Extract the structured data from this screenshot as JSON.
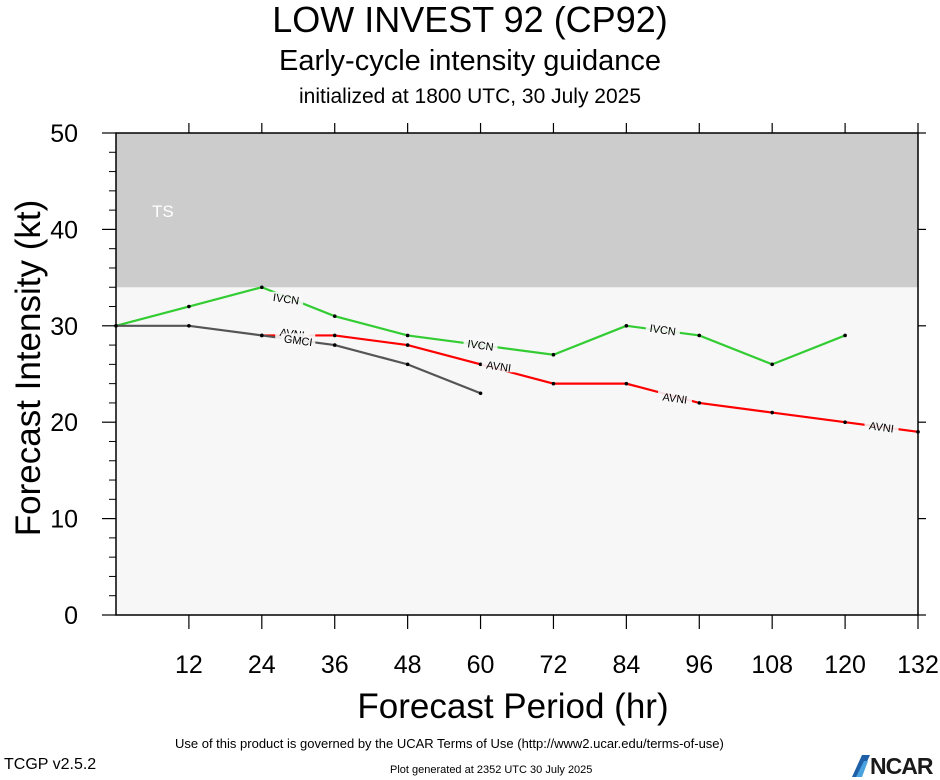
{
  "header": {
    "title": "LOW INVEST 92 (CP92)",
    "subtitle": "Early-cycle intensity guidance",
    "init_line": "initialized at 1800 UTC, 30 July 2025"
  },
  "footer": {
    "terms": "Use of this product is governed by the UCAR Terms of Use (http://www2.ucar.edu/terms-of-use)",
    "version": "TCGP v2.5.2",
    "generated": "Plot generated at 2352 UTC   30 July 2025",
    "logo_text": "NCAR"
  },
  "chart_data": {
    "type": "line",
    "xlabel": "Forecast Period (hr)",
    "ylabel": "Forecast Intensity (kt)",
    "xlim": [
      0,
      132
    ],
    "ylim": [
      0,
      50
    ],
    "xticks": [
      12,
      24,
      36,
      48,
      60,
      72,
      84,
      96,
      108,
      120,
      132
    ],
    "yticks": [
      0,
      10,
      20,
      30,
      40,
      50
    ],
    "grid": false,
    "bands": [
      {
        "label": "TS",
        "from": 34,
        "to": 50,
        "color": "#cccccc"
      }
    ],
    "plot_background": "#f7f7f7",
    "series": [
      {
        "name": "IVCN",
        "color": "#33cc33",
        "x": [
          0,
          12,
          24,
          36,
          48,
          60,
          72,
          84,
          96,
          108,
          120
        ],
        "y": [
          30,
          32,
          34,
          31,
          29,
          28,
          27,
          30,
          29,
          26,
          29
        ]
      },
      {
        "name": "AVNI",
        "color": "#ff0000",
        "x": [
          24,
          36,
          48,
          60,
          72,
          84,
          96,
          108,
          120,
          132
        ],
        "y": [
          29,
          29,
          28,
          26,
          24,
          24,
          22,
          21,
          20,
          19
        ]
      },
      {
        "name": "GMCI",
        "color": "#555555",
        "x": [
          0,
          12,
          24,
          36,
          48,
          60
        ],
        "y": [
          30,
          30,
          29,
          28,
          26,
          23
        ]
      }
    ],
    "annotations": [
      {
        "text": "IVCN",
        "x": 28,
        "y": 32.8,
        "series": 0
      },
      {
        "text": "IVCN",
        "x": 60,
        "y": 28.0,
        "series": 0
      },
      {
        "text": "IVCN",
        "x": 90,
        "y": 29.6,
        "series": 0
      },
      {
        "text": "AVNI",
        "x": 29,
        "y": 29.2,
        "series": 1
      },
      {
        "text": "AVNI",
        "x": 63,
        "y": 25.8,
        "series": 1
      },
      {
        "text": "AVNI",
        "x": 92,
        "y": 22.5,
        "series": 1
      },
      {
        "text": "AVNI",
        "x": 126,
        "y": 19.5,
        "series": 1
      },
      {
        "text": "GMCI",
        "x": 30,
        "y": 28.5,
        "series": 2
      }
    ]
  }
}
